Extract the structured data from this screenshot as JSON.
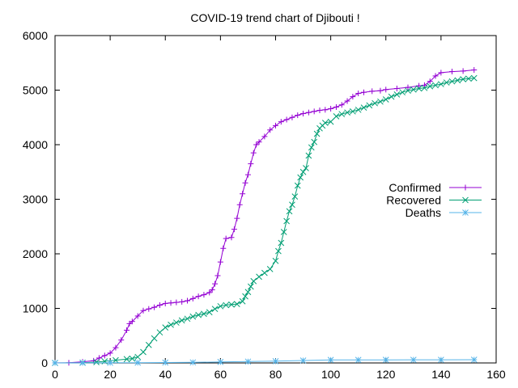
{
  "chart_data": {
    "type": "line",
    "title": "COVID-19 trend chart of Djibouti !",
    "xlabel": "",
    "ylabel": "",
    "xlim": [
      0,
      160
    ],
    "ylim": [
      0,
      6000
    ],
    "x_ticks": [
      0,
      20,
      40,
      60,
      80,
      100,
      120,
      140,
      160
    ],
    "y_ticks": [
      0,
      1000,
      2000,
      3000,
      4000,
      5000,
      6000
    ],
    "grid": false,
    "legend_position": "right",
    "series": [
      {
        "name": "Confirmed",
        "color": "#9400d3",
        "marker": "plus",
        "points": [
          [
            0,
            1
          ],
          [
            5,
            3
          ],
          [
            10,
            20
          ],
          [
            14,
            40
          ],
          [
            16,
            90
          ],
          [
            18,
            135
          ],
          [
            20,
            180
          ],
          [
            22,
            280
          ],
          [
            24,
            420
          ],
          [
            26,
            600
          ],
          [
            27,
            720
          ],
          [
            28,
            760
          ],
          [
            30,
            860
          ],
          [
            32,
            960
          ],
          [
            34,
            990
          ],
          [
            36,
            1020
          ],
          [
            38,
            1060
          ],
          [
            40,
            1090
          ],
          [
            42,
            1100
          ],
          [
            44,
            1110
          ],
          [
            46,
            1120
          ],
          [
            48,
            1140
          ],
          [
            50,
            1180
          ],
          [
            52,
            1220
          ],
          [
            54,
            1250
          ],
          [
            56,
            1290
          ],
          [
            57,
            1340
          ],
          [
            58,
            1450
          ],
          [
            59,
            1600
          ],
          [
            60,
            1850
          ],
          [
            61,
            2100
          ],
          [
            62,
            2280
          ],
          [
            64,
            2300
          ],
          [
            65,
            2450
          ],
          [
            66,
            2650
          ],
          [
            67,
            2900
          ],
          [
            68,
            3100
          ],
          [
            69,
            3300
          ],
          [
            70,
            3450
          ],
          [
            71,
            3650
          ],
          [
            72,
            3850
          ],
          [
            73,
            4000
          ],
          [
            74,
            4050
          ],
          [
            76,
            4150
          ],
          [
            78,
            4270
          ],
          [
            80,
            4350
          ],
          [
            82,
            4420
          ],
          [
            84,
            4460
          ],
          [
            86,
            4500
          ],
          [
            88,
            4540
          ],
          [
            90,
            4570
          ],
          [
            92,
            4590
          ],
          [
            94,
            4610
          ],
          [
            96,
            4630
          ],
          [
            98,
            4640
          ],
          [
            100,
            4660
          ],
          [
            102,
            4690
          ],
          [
            104,
            4730
          ],
          [
            106,
            4800
          ],
          [
            108,
            4880
          ],
          [
            110,
            4940
          ],
          [
            112,
            4960
          ],
          [
            115,
            4980
          ],
          [
            118,
            4990
          ],
          [
            120,
            5010
          ],
          [
            124,
            5030
          ],
          [
            128,
            5050
          ],
          [
            132,
            5080
          ],
          [
            134,
            5090
          ],
          [
            136,
            5160
          ],
          [
            138,
            5260
          ],
          [
            140,
            5320
          ],
          [
            144,
            5340
          ],
          [
            148,
            5350
          ],
          [
            152,
            5370
          ]
        ]
      },
      {
        "name": "Recovered",
        "color": "#009e73",
        "marker": "cross",
        "points": [
          [
            0,
            0
          ],
          [
            10,
            5
          ],
          [
            15,
            15
          ],
          [
            18,
            30
          ],
          [
            22,
            50
          ],
          [
            26,
            70
          ],
          [
            28,
            80
          ],
          [
            30,
            110
          ],
          [
            32,
            200
          ],
          [
            34,
            330
          ],
          [
            36,
            450
          ],
          [
            38,
            560
          ],
          [
            40,
            650
          ],
          [
            42,
            700
          ],
          [
            44,
            740
          ],
          [
            46,
            780
          ],
          [
            48,
            810
          ],
          [
            50,
            850
          ],
          [
            52,
            880
          ],
          [
            54,
            900
          ],
          [
            56,
            930
          ],
          [
            58,
            990
          ],
          [
            60,
            1040
          ],
          [
            62,
            1060
          ],
          [
            64,
            1070
          ],
          [
            66,
            1080
          ],
          [
            68,
            1130
          ],
          [
            69,
            1220
          ],
          [
            70,
            1300
          ],
          [
            71,
            1400
          ],
          [
            72,
            1500
          ],
          [
            74,
            1580
          ],
          [
            76,
            1650
          ],
          [
            78,
            1720
          ],
          [
            80,
            1870
          ],
          [
            81,
            2050
          ],
          [
            82,
            2200
          ],
          [
            83,
            2400
          ],
          [
            84,
            2600
          ],
          [
            85,
            2780
          ],
          [
            86,
            2900
          ],
          [
            87,
            3050
          ],
          [
            88,
            3250
          ],
          [
            89,
            3400
          ],
          [
            90,
            3500
          ],
          [
            91,
            3570
          ],
          [
            92,
            3800
          ],
          [
            93,
            3950
          ],
          [
            94,
            4050
          ],
          [
            95,
            4200
          ],
          [
            96,
            4300
          ],
          [
            97,
            4350
          ],
          [
            98,
            4400
          ],
          [
            100,
            4420
          ],
          [
            102,
            4520
          ],
          [
            104,
            4560
          ],
          [
            106,
            4590
          ],
          [
            108,
            4610
          ],
          [
            110,
            4640
          ],
          [
            112,
            4680
          ],
          [
            114,
            4720
          ],
          [
            116,
            4760
          ],
          [
            118,
            4790
          ],
          [
            120,
            4830
          ],
          [
            122,
            4880
          ],
          [
            124,
            4920
          ],
          [
            126,
            4960
          ],
          [
            128,
            4990
          ],
          [
            130,
            5010
          ],
          [
            132,
            5030
          ],
          [
            134,
            5040
          ],
          [
            136,
            5070
          ],
          [
            138,
            5090
          ],
          [
            140,
            5110
          ],
          [
            142,
            5140
          ],
          [
            144,
            5160
          ],
          [
            146,
            5180
          ],
          [
            148,
            5200
          ],
          [
            150,
            5210
          ],
          [
            152,
            5220
          ]
        ]
      },
      {
        "name": "Deaths",
        "color": "#56b4e9",
        "marker": "star",
        "points": [
          [
            0,
            0
          ],
          [
            10,
            2
          ],
          [
            20,
            3
          ],
          [
            30,
            5
          ],
          [
            40,
            8
          ],
          [
            50,
            10
          ],
          [
            60,
            18
          ],
          [
            70,
            25
          ],
          [
            80,
            32
          ],
          [
            90,
            45
          ],
          [
            100,
            55
          ],
          [
            110,
            56
          ],
          [
            120,
            57
          ],
          [
            130,
            58
          ],
          [
            140,
            58
          ],
          [
            152,
            59
          ]
        ]
      }
    ]
  }
}
